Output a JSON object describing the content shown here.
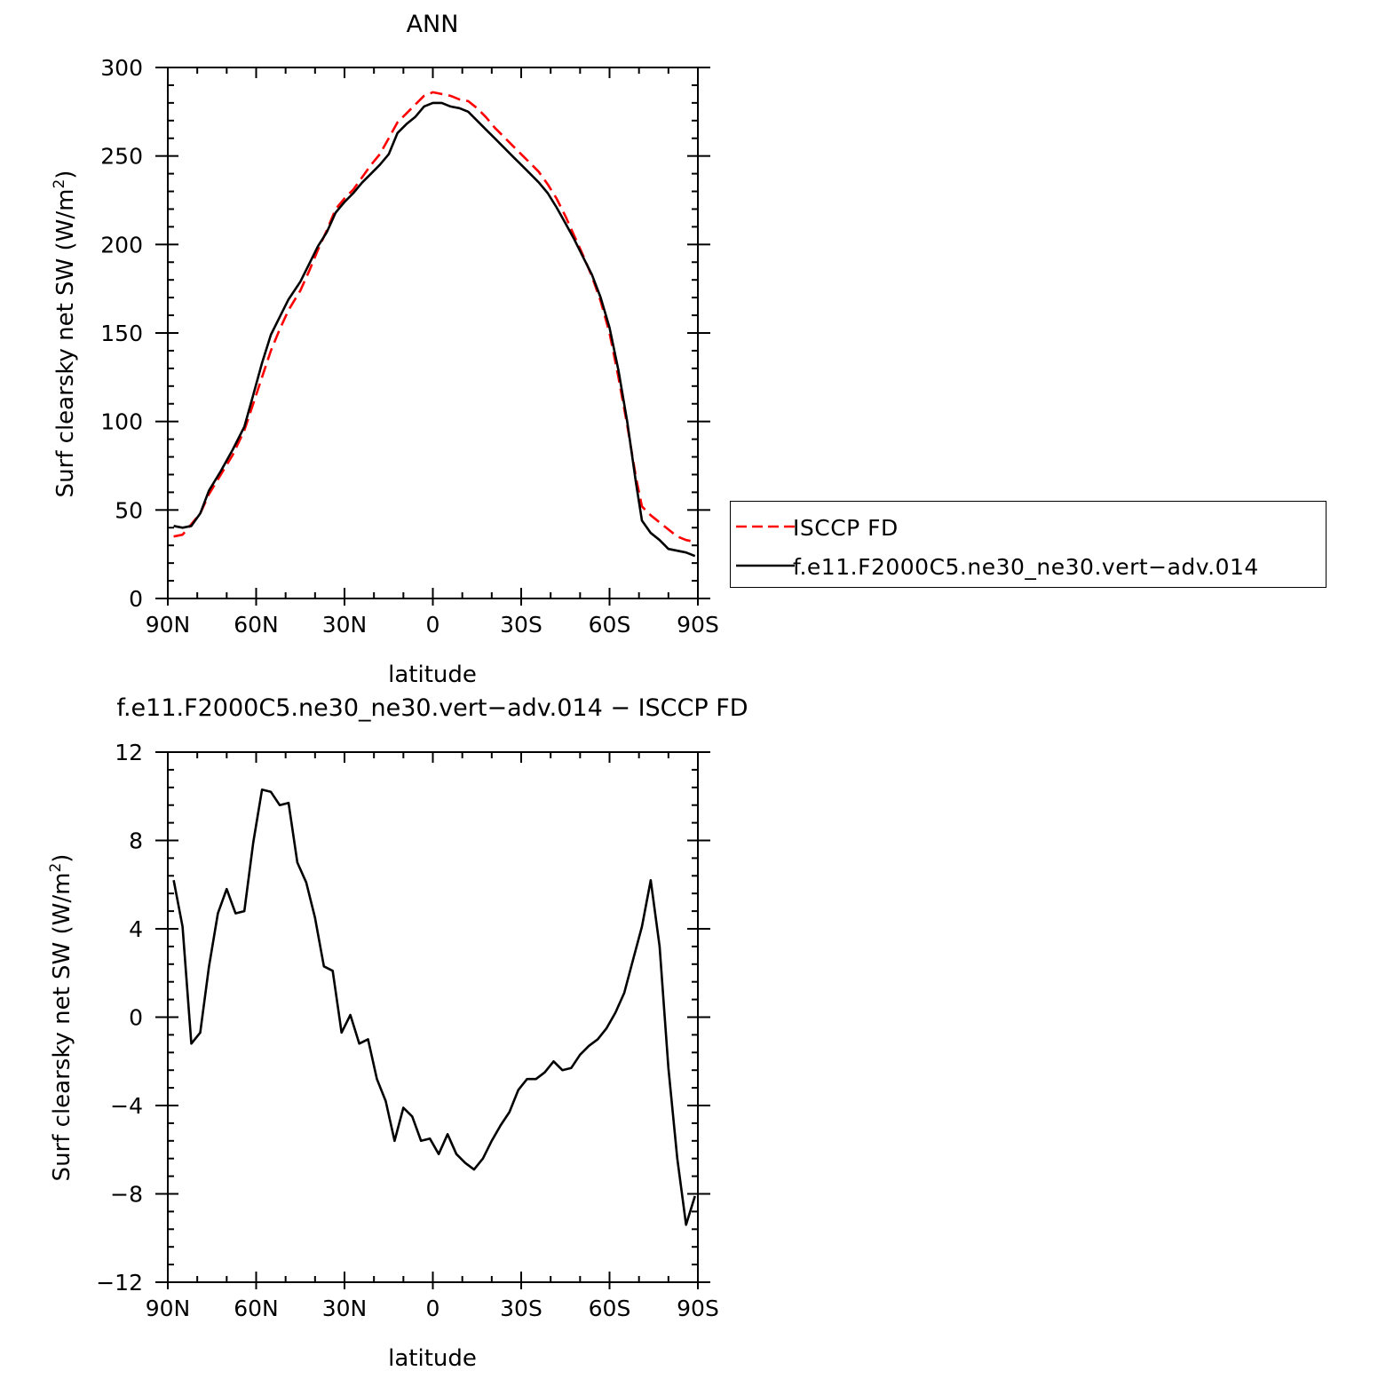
{
  "top_title": "ANN",
  "bottom_title": "f.e11.F2000C5.ne30_ne30.vert−adv.014 − ISCCP FD",
  "chart_data": [
    {
      "type": "line",
      "title": "ANN",
      "xlabel": "latitude",
      "ylabel": "Surf clearsky net SW (W/m",
      "ylabel_sup": "2",
      "ylabel_end": ")",
      "xlim": [
        90,
        -90
      ],
      "ylim": [
        0,
        300
      ],
      "x_ticks": [
        90,
        60,
        30,
        0,
        -30,
        -60,
        -90
      ],
      "x_tick_labels": [
        "90N",
        "60N",
        "30N",
        "0",
        "30S",
        "60S",
        "90S"
      ],
      "y_ticks": [
        0,
        50,
        100,
        150,
        200,
        250,
        300
      ],
      "y_tick_labels": [
        "0",
        "50",
        "100",
        "150",
        "200",
        "250",
        "300"
      ],
      "legend_position": "right",
      "series": [
        {
          "name": "ISCCP FD",
          "color": "#ff0000",
          "dash": true,
          "points": [
            [
              88,
              35
            ],
            [
              85,
              36
            ],
            [
              82,
              42
            ],
            [
              79,
              48
            ],
            [
              76,
              59
            ],
            [
              72,
              70
            ],
            [
              68,
              81
            ],
            [
              64,
              95
            ],
            [
              61,
              110
            ],
            [
              58,
              125
            ],
            [
              55,
              140
            ],
            [
              52,
              152
            ],
            [
              49,
              163
            ],
            [
              45,
              174
            ],
            [
              42,
              185
            ],
            [
              39,
              197
            ],
            [
              36,
              208
            ],
            [
              33,
              220
            ],
            [
              30,
              226
            ],
            [
              27,
              231
            ],
            [
              24,
              238
            ],
            [
              21,
              245
            ],
            [
              18,
              251
            ],
            [
              15,
              260
            ],
            [
              12,
              269
            ],
            [
              9,
              274
            ],
            [
              6,
              279
            ],
            [
              3,
              284
            ],
            [
              0,
              286
            ],
            [
              -3,
              285
            ],
            [
              -6,
              284
            ],
            [
              -9,
              282
            ],
            [
              -12,
              281
            ],
            [
              -15,
              277
            ],
            [
              -18,
              272
            ],
            [
              -21,
              266
            ],
            [
              -24,
              261
            ],
            [
              -27,
              256
            ],
            [
              -30,
              251
            ],
            [
              -33,
              246
            ],
            [
              -36,
              241
            ],
            [
              -39,
              234
            ],
            [
              -42,
              226
            ],
            [
              -45,
              216
            ],
            [
              -48,
              205
            ],
            [
              -51,
              194
            ],
            [
              -54,
              182
            ],
            [
              -57,
              168
            ],
            [
              -60,
              150
            ],
            [
              -63,
              125
            ],
            [
              -66,
              98
            ],
            [
              -69,
              68
            ],
            [
              -71,
              52
            ],
            [
              -74,
              47
            ],
            [
              -77,
              43
            ],
            [
              -80,
              39
            ],
            [
              -83,
              35
            ],
            [
              -86,
              33
            ],
            [
              -89,
              32
            ]
          ]
        },
        {
          "name": "f.e11.F2000C5.ne30_ne30.vert−adv.014",
          "color": "#000000",
          "dash": false,
          "points": [
            [
              88,
              41
            ],
            [
              85,
              40
            ],
            [
              82,
              41
            ],
            [
              79,
              48
            ],
            [
              76,
              61
            ],
            [
              72,
              72
            ],
            [
              68,
              84
            ],
            [
              64,
              97
            ],
            [
              61,
              115
            ],
            [
              58,
              133
            ],
            [
              55,
              149
            ],
            [
              52,
              159
            ],
            [
              49,
              169
            ],
            [
              45,
              179
            ],
            [
              42,
              189
            ],
            [
              39,
              199
            ],
            [
              36,
              207
            ],
            [
              33,
              218
            ],
            [
              30,
              224
            ],
            [
              27,
              229
            ],
            [
              24,
              235
            ],
            [
              21,
              240
            ],
            [
              18,
              245
            ],
            [
              15,
              251
            ],
            [
              12,
              263
            ],
            [
              9,
              268
            ],
            [
              6,
              272
            ],
            [
              3,
              278
            ],
            [
              0,
              280
            ],
            [
              -3,
              280
            ],
            [
              -6,
              278
            ],
            [
              -9,
              277
            ],
            [
              -12,
              275
            ],
            [
              -15,
              270
            ],
            [
              -18,
              265
            ],
            [
              -21,
              260
            ],
            [
              -24,
              255
            ],
            [
              -27,
              250
            ],
            [
              -30,
              245
            ],
            [
              -33,
              240
            ],
            [
              -36,
              235
            ],
            [
              -39,
              229
            ],
            [
              -42,
              221
            ],
            [
              -45,
              212
            ],
            [
              -48,
              203
            ],
            [
              -51,
              193
            ],
            [
              -54,
              183
            ],
            [
              -57,
              170
            ],
            [
              -60,
              153
            ],
            [
              -63,
              129
            ],
            [
              -66,
              100
            ],
            [
              -69,
              65
            ],
            [
              -71,
              44
            ],
            [
              -74,
              37
            ],
            [
              -77,
              33
            ],
            [
              -80,
              28
            ],
            [
              -83,
              27
            ],
            [
              -86,
              26
            ],
            [
              -89,
              24
            ]
          ]
        }
      ]
    },
    {
      "type": "line",
      "title": "f.e11.F2000C5.ne30_ne30.vert−adv.014 − ISCCP FD",
      "xlabel": "latitude",
      "ylabel": "Surf clearsky net SW (W/m",
      "ylabel_sup": "2",
      "ylabel_end": ")",
      "xlim": [
        90,
        -90
      ],
      "ylim": [
        -12,
        12
      ],
      "x_ticks": [
        90,
        60,
        30,
        0,
        -30,
        -60,
        -90
      ],
      "x_tick_labels": [
        "90N",
        "60N",
        "30N",
        "0",
        "30S",
        "60S",
        "90S"
      ],
      "y_ticks": [
        -12,
        -8,
        -4,
        0,
        4,
        8,
        12
      ],
      "y_tick_labels": [
        "−12",
        "−8",
        "−4",
        "0",
        "4",
        "8",
        "12"
      ],
      "series": [
        {
          "color": "#000000",
          "dash": false,
          "points": [
            [
              88,
              6.2
            ],
            [
              85,
              4.1
            ],
            [
              82,
              -1.2
            ],
            [
              79,
              -0.7
            ],
            [
              76,
              2.3
            ],
            [
              73,
              4.7
            ],
            [
              70,
              5.8
            ],
            [
              67,
              4.7
            ],
            [
              64,
              4.8
            ],
            [
              61,
              7.9
            ],
            [
              58,
              10.3
            ],
            [
              55,
              10.2
            ],
            [
              52,
              9.6
            ],
            [
              49,
              9.7
            ],
            [
              46,
              7.0
            ],
            [
              43,
              6.1
            ],
            [
              40,
              4.5
            ],
            [
              37,
              2.3
            ],
            [
              34,
              2.1
            ],
            [
              31,
              -0.7
            ],
            [
              28,
              0.1
            ],
            [
              25,
              -1.2
            ],
            [
              22,
              -1.0
            ],
            [
              19,
              -2.8
            ],
            [
              16,
              -3.8
            ],
            [
              13,
              -5.6
            ],
            [
              10,
              -4.1
            ],
            [
              7,
              -4.5
            ],
            [
              4,
              -5.6
            ],
            [
              1,
              -5.5
            ],
            [
              -2,
              -6.2
            ],
            [
              -5,
              -5.3
            ],
            [
              -8,
              -6.2
            ],
            [
              -11,
              -6.6
            ],
            [
              -14,
              -6.9
            ],
            [
              -17,
              -6.4
            ],
            [
              -20,
              -5.6
            ],
            [
              -23,
              -4.9
            ],
            [
              -26,
              -4.3
            ],
            [
              -29,
              -3.3
            ],
            [
              -32,
              -2.8
            ],
            [
              -35,
              -2.8
            ],
            [
              -38,
              -2.5
            ],
            [
              -41,
              -2.0
            ],
            [
              -44,
              -2.4
            ],
            [
              -47,
              -2.3
            ],
            [
              -50,
              -1.7
            ],
            [
              -53,
              -1.3
            ],
            [
              -56,
              -1.0
            ],
            [
              -59,
              -0.5
            ],
            [
              -62,
              0.2
            ],
            [
              -65,
              1.1
            ],
            [
              -68,
              2.6
            ],
            [
              -71,
              4.1
            ],
            [
              -74,
              6.2
            ],
            [
              -77,
              3.2
            ],
            [
              -80,
              -2.3
            ],
            [
              -83,
              -6.4
            ],
            [
              -86,
              -9.4
            ],
            [
              -89,
              -8.1
            ]
          ]
        }
      ]
    }
  ]
}
